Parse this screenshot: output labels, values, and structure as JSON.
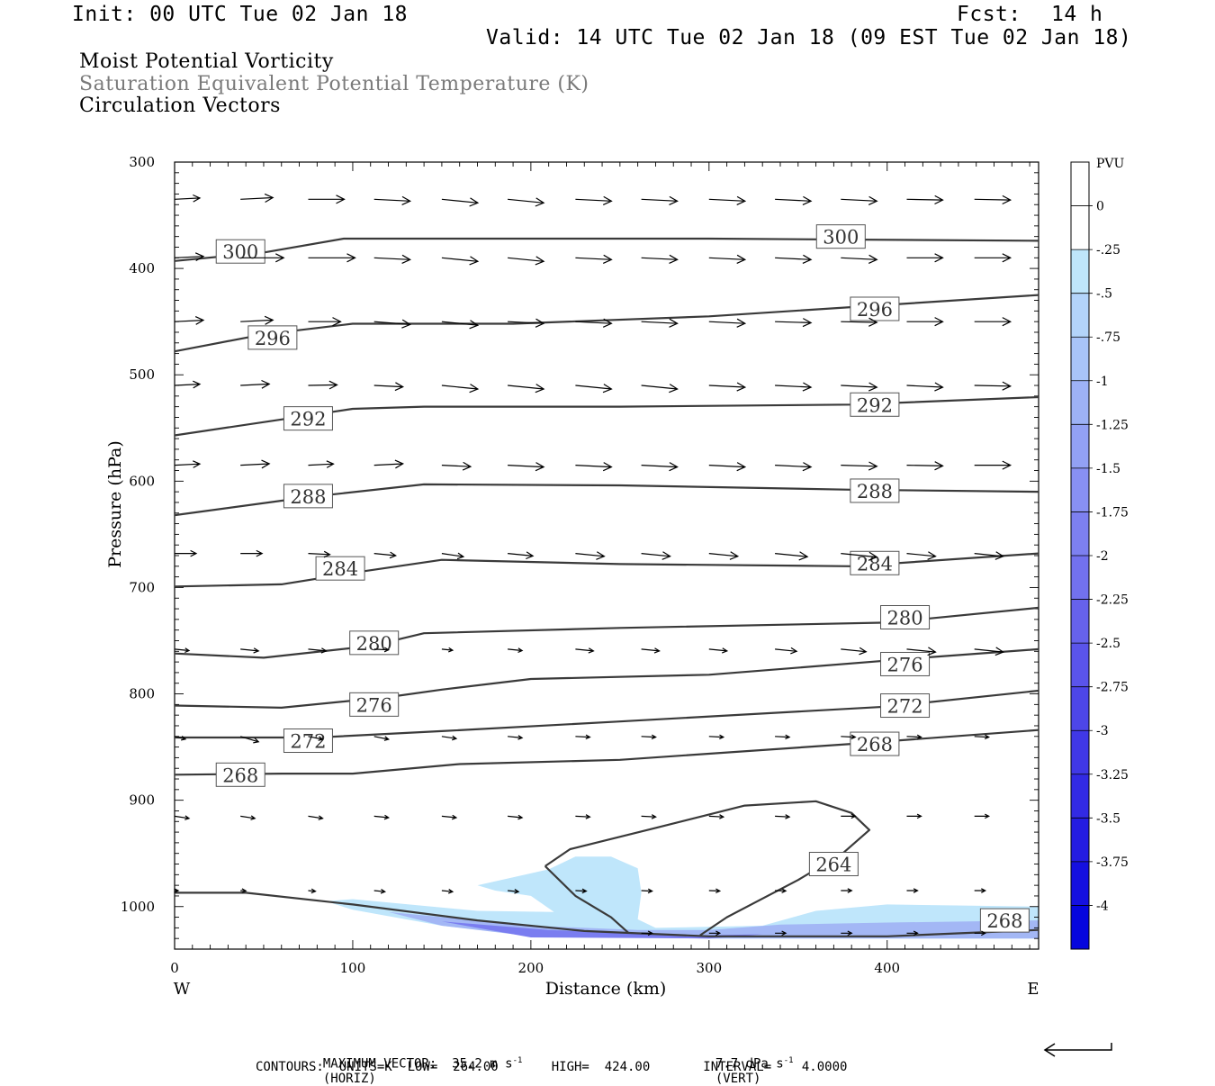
{
  "header": {
    "init": "Init: 00 UTC Tue 02 Jan 18",
    "fcst_label": "Fcst:",
    "fcst_value": "14 h",
    "valid": "Valid: 14 UTC Tue 02 Jan 18 (09 EST Tue 02 Jan 18)"
  },
  "fields": {
    "line1": "Moist Potential Vorticity",
    "line2": "Saturation Equivalent Potential Temperature (K)",
    "line3": "Circulation Vectors"
  },
  "footer": {
    "max_vector": "MAXIMUM VECTOR:  35.2 m s",
    "max_vector_exp": "-1",
    "max_vector_horiz": "(HORIZ)",
    "vert_value": "7.7 dPa s",
    "vert_exp": "-1",
    "vert_label": "(VERT)",
    "contours": "CONTOURS:  UNITS=K  LOW=  264.00       HIGH=  424.00       INTERVAL=    4.0000"
  },
  "colors": {
    "contour": "#3a3a3a",
    "shade_light": "#bfe6fb",
    "shade_mid": "#a3b7f5",
    "shade_dark": "#7a7df0"
  },
  "chart_data": {
    "type": "cross-section",
    "xlabel": "Distance (km)",
    "ylabel": "Pressure (hPa)",
    "xlim": [
      0,
      485
    ],
    "ylim": [
      300,
      1040
    ],
    "xticks": [
      0,
      100,
      200,
      300,
      400
    ],
    "yticks": [
      300,
      400,
      500,
      600,
      700,
      800,
      900,
      1000
    ],
    "x_end_labels": {
      "left": "W",
      "right": "E"
    },
    "colorbar": {
      "title": "PVU",
      "labels": [
        "0",
        "-.25",
        "-.5",
        "-.75",
        "-1",
        "-1.25",
        "-1.5",
        "-1.75",
        "-2",
        "-2.25",
        "-2.5",
        "-2.75",
        "-3",
        "-3.25",
        "-3.5",
        "-3.75",
        "-4"
      ],
      "colors": [
        "#ffffff",
        "#ffffff",
        "#bfe6fb",
        "#b3d4fa",
        "#a8c4f8",
        "#9db2f6",
        "#92a1f4",
        "#8890f2",
        "#7d80f0",
        "#7271ee",
        "#6662ec",
        "#5a54ea",
        "#4d46e8",
        "#4038e6",
        "#322ae4",
        "#241ce2",
        "#1510e0",
        "#0606de"
      ]
    },
    "contours": [
      {
        "value": 300,
        "label": "300",
        "points": [
          [
            0,
            393
          ],
          [
            50,
            385
          ],
          [
            95,
            372
          ],
          [
            300,
            372
          ],
          [
            485,
            374
          ]
        ],
        "label_at": [
          [
            37,
            384
          ],
          [
            374,
            370
          ]
        ]
      },
      {
        "value": 296,
        "label": "296",
        "points": [
          [
            0,
            478
          ],
          [
            50,
            462
          ],
          [
            100,
            452
          ],
          [
            190,
            452
          ],
          [
            300,
            445
          ],
          [
            485,
            425
          ]
        ],
        "label_at": [
          [
            55,
            465
          ],
          [
            393,
            438
          ]
        ]
      },
      {
        "value": 292,
        "label": "292",
        "points": [
          [
            0,
            557
          ],
          [
            60,
            542
          ],
          [
            100,
            532
          ],
          [
            140,
            530
          ],
          [
            250,
            530
          ],
          [
            380,
            528
          ],
          [
            485,
            521
          ]
        ],
        "label_at": [
          [
            75,
            541
          ],
          [
            393,
            528
          ]
        ]
      },
      {
        "value": 288,
        "label": "288",
        "points": [
          [
            0,
            632
          ],
          [
            75,
            615
          ],
          [
            140,
            603
          ],
          [
            250,
            604
          ],
          [
            380,
            608
          ],
          [
            485,
            610
          ]
        ],
        "label_at": [
          [
            75,
            614
          ],
          [
            393,
            609
          ]
        ]
      },
      {
        "value": 284,
        "label": "284",
        "points": [
          [
            0,
            699
          ],
          [
            60,
            697
          ],
          [
            105,
            685
          ],
          [
            150,
            674
          ],
          [
            250,
            678
          ],
          [
            380,
            680
          ],
          [
            485,
            668
          ]
        ],
        "label_at": [
          [
            93,
            682
          ],
          [
            393,
            677
          ]
        ]
      },
      {
        "value": 280,
        "label": "280",
        "points": [
          [
            0,
            762
          ],
          [
            50,
            766
          ],
          [
            110,
            755
          ],
          [
            140,
            743
          ],
          [
            250,
            738
          ],
          [
            400,
            733
          ],
          [
            485,
            719
          ]
        ],
        "label_at": [
          [
            112,
            752
          ],
          [
            410,
            728
          ]
        ]
      },
      {
        "value": 276,
        "label": "276",
        "points": [
          [
            0,
            811
          ],
          [
            60,
            813
          ],
          [
            120,
            803
          ],
          [
            150,
            796
          ],
          [
            200,
            786
          ],
          [
            300,
            782
          ],
          [
            420,
            766
          ],
          [
            485,
            758
          ]
        ],
        "label_at": [
          [
            112,
            810
          ],
          [
            410,
            772
          ]
        ]
      },
      {
        "value": 272,
        "label": "272",
        "points": [
          [
            0,
            841
          ],
          [
            80,
            841
          ],
          [
            150,
            835
          ],
          [
            250,
            826
          ],
          [
            400,
            812
          ],
          [
            485,
            797
          ]
        ],
        "label_at": [
          [
            75,
            844
          ],
          [
            410,
            811
          ]
        ]
      },
      {
        "value": 268,
        "label": "268",
        "points": [
          [
            0,
            876
          ],
          [
            60,
            875
          ],
          [
            100,
            875
          ],
          [
            160,
            866
          ],
          [
            250,
            862
          ],
          [
            380,
            847
          ],
          [
            485,
            834
          ]
        ],
        "label_at": [
          [
            37,
            876
          ],
          [
            393,
            847
          ]
        ]
      },
      {
        "value": 264,
        "label": "264",
        "points": [
          [
            208,
            962
          ],
          [
            222,
            946
          ],
          [
            270,
            926
          ],
          [
            320,
            905
          ],
          [
            360,
            901
          ],
          [
            380,
            912
          ],
          [
            390,
            928
          ],
          [
            375,
            950
          ],
          [
            350,
            975
          ],
          [
            310,
            1010
          ],
          [
            295,
            1027
          ]
        ],
        "label_at": [
          [
            370,
            960
          ]
        ]
      },
      {
        "value": 264,
        "label": "",
        "points": [
          [
            208,
            962
          ],
          [
            225,
            990
          ],
          [
            245,
            1010
          ],
          [
            255,
            1025
          ]
        ],
        "label_at": []
      },
      {
        "value": 268,
        "label": "268",
        "points": [
          [
            0,
            987
          ],
          [
            40,
            987
          ],
          [
            100,
            998
          ],
          [
            170,
            1013
          ],
          [
            230,
            1023
          ],
          [
            300,
            1028
          ],
          [
            400,
            1028
          ],
          [
            485,
            1022
          ]
        ],
        "label_at": [
          [
            466,
            1013
          ]
        ]
      }
    ],
    "shading": [
      {
        "level": "-.25 to -.5",
        "points": [
          [
            170,
            980
          ],
          [
            210,
            965
          ],
          [
            225,
            953
          ],
          [
            245,
            953
          ],
          [
            260,
            964
          ],
          [
            262,
            987
          ],
          [
            260,
            1012
          ],
          [
            270,
            1020
          ],
          [
            330,
            1018
          ],
          [
            360,
            1004
          ],
          [
            400,
            998
          ],
          [
            485,
            1000
          ],
          [
            485,
            1030
          ],
          [
            300,
            1030
          ],
          [
            200,
            1027
          ],
          [
            150,
            1018
          ],
          [
            100,
            1003
          ],
          [
            85,
            995
          ],
          [
            100,
            993
          ],
          [
            170,
            1004
          ],
          [
            213,
            1005
          ],
          [
            200,
            990
          ],
          [
            180,
            985
          ]
        ]
      },
      {
        "level": "-.5 to -1",
        "points": [
          [
            120,
            1005
          ],
          [
            200,
            1018
          ],
          [
            260,
            1022
          ],
          [
            300,
            1022
          ],
          [
            340,
            1017
          ],
          [
            400,
            1015
          ],
          [
            485,
            1013
          ],
          [
            485,
            1030
          ],
          [
            300,
            1030
          ],
          [
            200,
            1028
          ],
          [
            150,
            1018
          ]
        ]
      },
      {
        "level": "-1 to -2",
        "points": [
          [
            150,
            1014
          ],
          [
            210,
            1022
          ],
          [
            270,
            1026
          ],
          [
            300,
            1027
          ],
          [
            330,
            1026
          ],
          [
            300,
            1030
          ],
          [
            200,
            1029
          ]
        ]
      }
    ],
    "vectors": [
      {
        "p": 335,
        "x": [
          0,
          37,
          75,
          112,
          150,
          187,
          225,
          262,
          300,
          337,
          374,
          411,
          449
        ],
        "u": [
          0.7,
          0.9,
          1,
          1,
          1,
          1,
          1,
          1,
          1,
          1,
          1,
          1,
          1
        ],
        "w": [
          -0.05,
          -0.05,
          0,
          0.05,
          0.1,
          0.1,
          0.05,
          0.05,
          0.05,
          0.05,
          0.05,
          0.02,
          0.02
        ]
      },
      {
        "p": 390,
        "x": [
          0,
          37,
          75,
          112,
          150,
          187,
          225,
          262,
          300,
          337,
          374,
          411,
          449
        ],
        "u": [
          0.8,
          1.2,
          1.3,
          1,
          1,
          1,
          1,
          1,
          1,
          1,
          1,
          1,
          1
        ],
        "w": [
          -0.05,
          0,
          0,
          0.05,
          0.1,
          0.1,
          0.05,
          0.05,
          0.05,
          0.05,
          0.05,
          0,
          0
        ]
      },
      {
        "p": 450,
        "x": [
          0,
          37,
          75,
          112,
          150,
          187,
          225,
          262,
          300,
          337,
          374,
          411,
          449
        ],
        "u": [
          0.8,
          0.9,
          0.9,
          1,
          1,
          1,
          1,
          1,
          1,
          1,
          1,
          1,
          1
        ],
        "w": [
          -0.05,
          -0.05,
          0,
          0.08,
          0.1,
          0.05,
          0.05,
          0.05,
          0.05,
          0.03,
          0.02,
          0,
          0
        ]
      },
      {
        "p": 510,
        "x": [
          0,
          37,
          75,
          112,
          150,
          187,
          225,
          262,
          300,
          337,
          374,
          411,
          449
        ],
        "u": [
          0.7,
          0.8,
          0.8,
          0.8,
          1,
          1,
          1,
          1,
          1,
          1,
          1,
          1,
          1
        ],
        "w": [
          -0.05,
          -0.05,
          -0.02,
          0.05,
          0.1,
          0.1,
          0.1,
          0.1,
          0.05,
          0.05,
          0.05,
          0.05,
          0.02
        ]
      },
      {
        "p": 585,
        "x": [
          0,
          37,
          75,
          112,
          150,
          187,
          225,
          262,
          300,
          337,
          374,
          411,
          449
        ],
        "u": [
          0.7,
          0.8,
          0.7,
          0.8,
          0.8,
          1,
          1,
          1,
          1,
          1,
          1,
          1,
          1
        ],
        "w": [
          -0.05,
          -0.05,
          -0.05,
          -0.05,
          0.05,
          0.05,
          0.05,
          0.05,
          0.05,
          0.05,
          0.03,
          0.02,
          0
        ]
      },
      {
        "p": 668,
        "x": [
          0,
          37,
          75,
          112,
          150,
          187,
          225,
          262,
          300,
          337,
          374,
          411,
          449
        ],
        "u": [
          0.6,
          0.6,
          0.6,
          0.6,
          0.6,
          0.7,
          0.8,
          0.8,
          0.8,
          0.9,
          1,
          0.8,
          0.8
        ],
        "w": [
          0,
          0,
          0.05,
          0.1,
          0.15,
          0.1,
          0.1,
          0.1,
          0.1,
          0.1,
          0.1,
          0.1,
          0.1
        ]
      },
      {
        "p": 758,
        "x": [
          0,
          37,
          75,
          112,
          150,
          187,
          225,
          262,
          300,
          337,
          374,
          411,
          449
        ],
        "u": [
          0.4,
          0.5,
          0.5,
          0.4,
          0.3,
          0.4,
          0.5,
          0.5,
          0.5,
          0.6,
          0.7,
          0.8,
          0.8
        ],
        "w": [
          0.1,
          0.1,
          0.1,
          0.05,
          0.1,
          0.1,
          0.1,
          0.1,
          0.1,
          0.1,
          0.1,
          0.1,
          0.1
        ]
      },
      {
        "p": 840,
        "x": [
          0,
          37,
          75,
          112,
          150,
          187,
          225,
          262,
          300,
          337,
          374,
          411,
          449
        ],
        "u": [
          0.3,
          0.5,
          0.4,
          0.4,
          0.4,
          0.4,
          0.4,
          0.4,
          0.4,
          0.4,
          0.4,
          0.4,
          0.4
        ],
        "w": [
          0.25,
          0.3,
          0.2,
          0.2,
          0.15,
          0.1,
          0.05,
          0.05,
          0.05,
          0.05,
          0.05,
          0.05,
          0.05
        ]
      },
      {
        "p": 915,
        "x": [
          0,
          37,
          75,
          112,
          150,
          187,
          225,
          262,
          300,
          337,
          374,
          411,
          449
        ],
        "u": [
          0.4,
          0.4,
          0.4,
          0.4,
          0.4,
          0.4,
          0.4,
          0.4,
          0.4,
          0.4,
          0.4,
          0.4,
          0.4
        ],
        "w": [
          0.15,
          0.15,
          0.15,
          0.1,
          0.1,
          0.1,
          0.05,
          0.05,
          0.05,
          0.05,
          0,
          0,
          0
        ]
      },
      {
        "p": 985,
        "x": [
          0,
          37,
          75,
          112,
          150,
          187,
          225,
          262,
          300,
          337,
          374,
          411,
          449
        ],
        "u": [
          0.1,
          0.15,
          0.2,
          0.3,
          0.3,
          0.3,
          0.3,
          0.3,
          0.3,
          0.3,
          0.3,
          0.3,
          0.3
        ],
        "w": [
          0,
          0.05,
          0.1,
          0.1,
          0.1,
          0.1,
          0.05,
          0.05,
          0.03,
          0.02,
          0,
          0,
          0
        ]
      },
      {
        "p": 1025,
        "x": [
          262,
          300,
          337,
          374,
          411,
          449
        ],
        "u": [
          0.3,
          0.3,
          0.3,
          0.3,
          0.3,
          0.3
        ],
        "w": [
          0,
          0,
          0,
          0,
          0,
          0
        ]
      }
    ]
  }
}
